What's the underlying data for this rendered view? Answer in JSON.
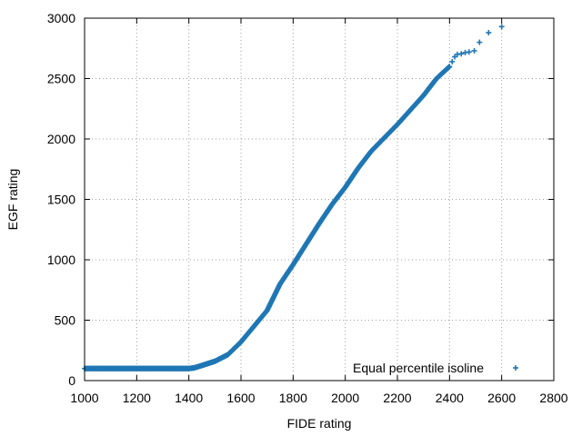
{
  "chart_data": {
    "type": "scatter",
    "xlabel": "FIDE rating",
    "ylabel": "EGF rating",
    "xlim": [
      1000,
      2800
    ],
    "ylim": [
      0,
      3000
    ],
    "xticks": [
      1000,
      1200,
      1400,
      1600,
      1800,
      2000,
      2200,
      2400,
      2600,
      2800
    ],
    "yticks": [
      0,
      500,
      1000,
      1500,
      2000,
      2500,
      3000
    ],
    "grid": true,
    "grid_style": "dotted",
    "legend_position": "bottom-right",
    "marker": "plus",
    "color": "#1f77b4",
    "series": [
      {
        "name": "Equal percentile isoline",
        "curve": [
          [
            1000,
            100
          ],
          [
            1100,
            100
          ],
          [
            1200,
            100
          ],
          [
            1300,
            100
          ],
          [
            1400,
            100
          ],
          [
            1420,
            105
          ],
          [
            1450,
            125
          ],
          [
            1500,
            160
          ],
          [
            1550,
            215
          ],
          [
            1600,
            320
          ],
          [
            1650,
            450
          ],
          [
            1700,
            580
          ],
          [
            1750,
            800
          ],
          [
            1800,
            960
          ],
          [
            1850,
            1130
          ],
          [
            1900,
            1300
          ],
          [
            1950,
            1460
          ],
          [
            2000,
            1600
          ],
          [
            2050,
            1760
          ],
          [
            2100,
            1900
          ],
          [
            2150,
            2010
          ],
          [
            2200,
            2120
          ],
          [
            2250,
            2240
          ],
          [
            2300,
            2360
          ],
          [
            2350,
            2500
          ],
          [
            2380,
            2560
          ],
          [
            2400,
            2600
          ]
        ],
        "sparse_points": [
          [
            2410,
            2640
          ],
          [
            2420,
            2680
          ],
          [
            2430,
            2700
          ],
          [
            2445,
            2705
          ],
          [
            2460,
            2715
          ],
          [
            2475,
            2720
          ],
          [
            2495,
            2730
          ],
          [
            2515,
            2800
          ],
          [
            2550,
            2880
          ],
          [
            2600,
            2930
          ]
        ]
      }
    ]
  }
}
